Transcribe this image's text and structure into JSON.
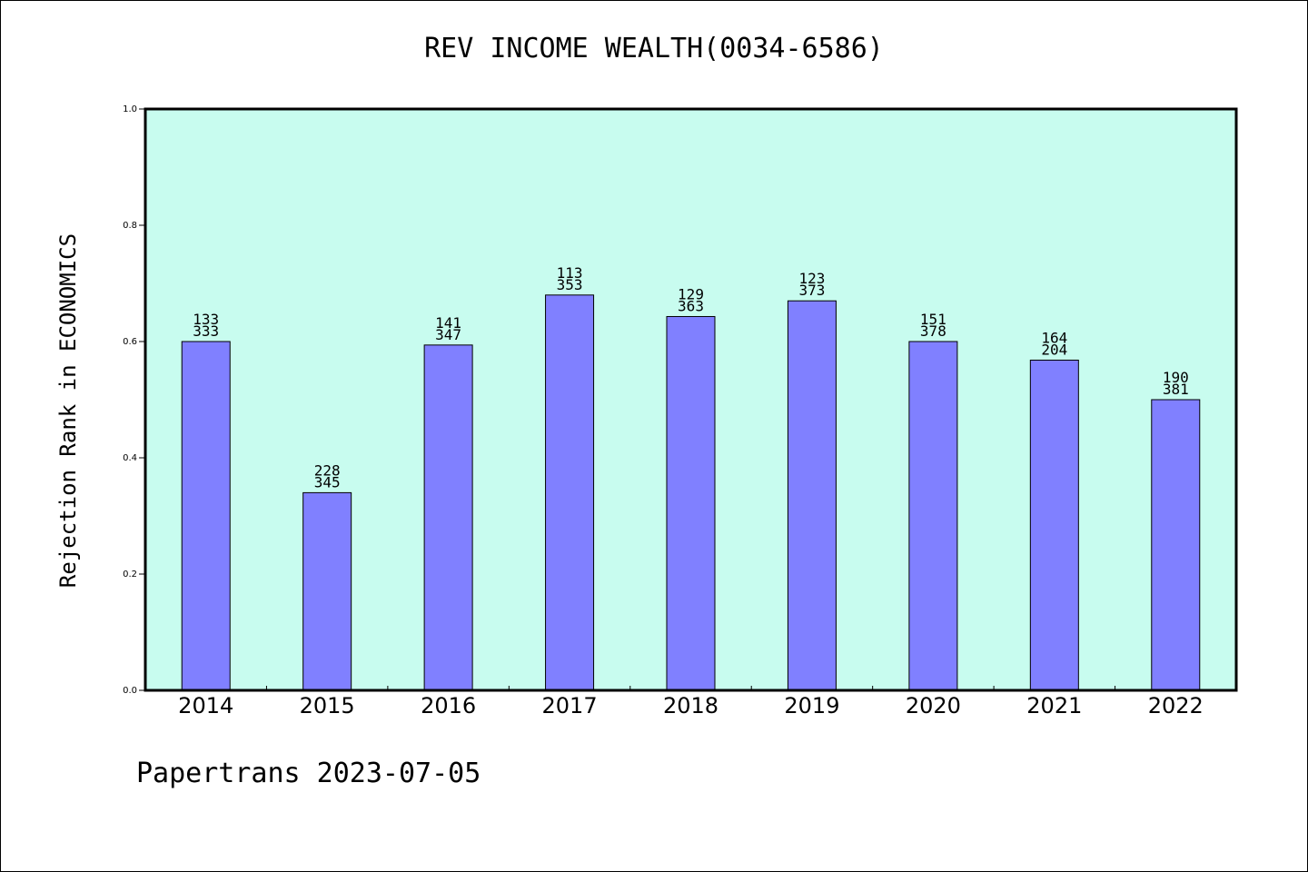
{
  "chart_data": {
    "type": "bar",
    "title": "REV INCOME WEALTH(0034-6586)",
    "xlabel": "",
    "ylabel": "Rejection Rank in ECONOMICS",
    "ylim": [
      0,
      1.0
    ],
    "yticks": [
      "0.0",
      "0.2",
      "0.4",
      "0.6",
      "0.8",
      "1.0"
    ],
    "categories": [
      "2014",
      "2015",
      "2016",
      "2017",
      "2018",
      "2019",
      "2020",
      "2021",
      "2022"
    ],
    "values": [
      0.6,
      0.34,
      0.594,
      0.68,
      0.643,
      0.67,
      0.6,
      0.568,
      0.5
    ],
    "labels_top": [
      "133",
      "228",
      "141",
      "113",
      "129",
      "123",
      "151",
      "164",
      "190"
    ],
    "labels_bottom": [
      "333",
      "345",
      "347",
      "353",
      "363",
      "373",
      "378",
      "204",
      "381"
    ],
    "grid": false,
    "colors": {
      "plot_background": "#c8fcef",
      "bar": "#8080ff"
    }
  },
  "footer": {
    "text": "Papertrans 2023-07-05"
  }
}
